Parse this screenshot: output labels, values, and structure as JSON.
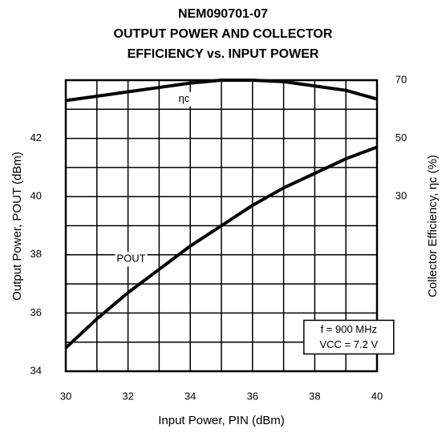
{
  "chart_data": {
    "type": "line",
    "title": [
      "NEM090701-07",
      "OUTPUT POWER AND COLLECTOR",
      "EFFICIENCY vs. INPUT POWER"
    ],
    "x_label": "Input Power, PIN (dBm)",
    "y_label": "Output Power, POUT (dBm)",
    "y2_label": "Collector Efficiency, ηc (%)",
    "x": [
      30,
      31,
      32,
      33,
      34,
      35,
      36,
      37,
      38,
      39,
      40
    ],
    "series": [
      {
        "name": "POUT",
        "color": "#000000",
        "values": [
          34.8,
          35.8,
          36.7,
          37.5,
          38.3,
          39.0,
          39.7,
          40.3,
          40.8,
          41.3,
          41.7
        ]
      },
      {
        "name": "ηc",
        "color": "#000000",
        "axis": "y2",
        "values": [
          63,
          64.5,
          66,
          67.5,
          69,
          70,
          70,
          69.5,
          68,
          66.5,
          63.5
        ]
      }
    ],
    "annotations": [
      "f = 900 MHz",
      "VCC = 7.2 V"
    ],
    "xlim": [
      30,
      40
    ],
    "xticks": [
      30,
      32,
      34,
      36,
      38,
      40
    ],
    "ylim": [
      34,
      44
    ],
    "yticks": [
      34,
      36,
      38,
      40,
      42
    ],
    "y2lim": [
      -30,
      70
    ],
    "y2ticks": [
      30,
      50,
      70
    ],
    "xgrid": [
      31,
      32,
      33,
      34,
      35,
      36,
      37,
      38,
      39
    ],
    "ygrid": [
      35,
      36,
      37,
      38,
      39,
      40,
      41,
      42,
      43
    ]
  }
}
